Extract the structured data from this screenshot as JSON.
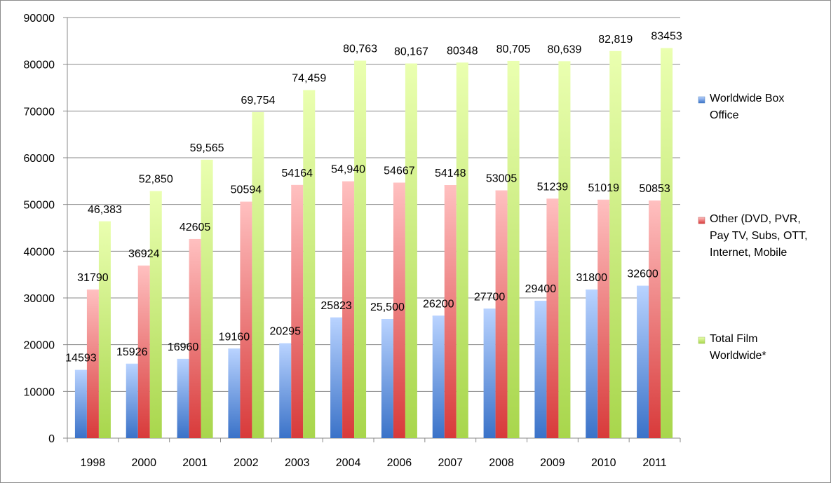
{
  "chart_data": {
    "type": "bar",
    "categories": [
      "1998",
      "2000",
      "2001",
      "2002",
      "2003",
      "2004",
      "2006",
      "2007",
      "2008",
      "2009",
      "2010",
      "2011"
    ],
    "ylim": [
      0,
      90000
    ],
    "yticks": [
      0,
      10000,
      20000,
      30000,
      40000,
      50000,
      60000,
      70000,
      80000,
      90000
    ],
    "ytick_labels": [
      "0",
      "10000",
      "20000",
      "30000",
      "40000",
      "50000",
      "60000",
      "70000",
      "80000",
      "90000"
    ],
    "grid": true,
    "legend_position": "right",
    "series": [
      {
        "name": "Worldwide Box Office",
        "color_light": "#b9d3ff",
        "color_dark": "#3a72c8",
        "legend_color": "#4f81bd",
        "values": [
          14593,
          15926,
          16960,
          19160,
          20295,
          25823,
          25500,
          26200,
          27700,
          29400,
          31800,
          32600
        ],
        "labels": [
          "14593",
          "15926",
          "16960",
          "19160",
          "20295",
          "25823",
          "25,500",
          "26200",
          "27700",
          "29400",
          "31800",
          "32600"
        ]
      },
      {
        "name": "Other (DVD, PVR, Pay TV, Subs, OTT, Internet, Mobile",
        "color_light": "#ffc0c0",
        "color_dark": "#d83a3a",
        "legend_color": "#c0504d",
        "values": [
          31790,
          36924,
          42605,
          50594,
          54164,
          54940,
          54667,
          54148,
          53005,
          51239,
          51019,
          50853
        ],
        "labels": [
          "31790",
          "36924",
          "42605",
          "50594",
          "54164",
          "54,940",
          "54667",
          "54148",
          "53005",
          "51239",
          "51019",
          "50853"
        ]
      },
      {
        "name": "Total Film Worldwide*",
        "color_light": "#eaffb0",
        "color_dark": "#a8d64c",
        "legend_color": "#9bbb59",
        "values": [
          46383,
          52850,
          59565,
          69754,
          74459,
          80763,
          80167,
          80348,
          80705,
          80639,
          82819,
          83453
        ],
        "labels": [
          "46,383",
          "52,850",
          "59,565",
          "69,754",
          "74,459",
          "80,763",
          "80,167",
          "80348",
          "80,705",
          "80,639",
          "82,819",
          "83453"
        ]
      }
    ]
  },
  "legend": {
    "items": [
      {
        "lines": [
          "Worldwide Box",
          "Office"
        ]
      },
      {
        "lines": [
          "Other (DVD, PVR,",
          "Pay TV, Subs, OTT,",
          "Internet, Mobile"
        ]
      },
      {
        "lines": [
          "Total Film",
          "Worldwide*"
        ]
      }
    ]
  }
}
